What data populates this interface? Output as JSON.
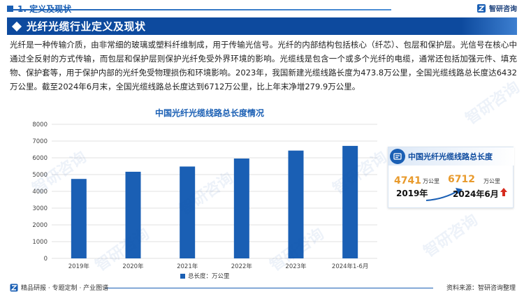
{
  "header": {
    "section_label": "1. 定义及现状",
    "brand": "智研咨询"
  },
  "banner": {
    "title": "光纤光缆行业定义及现状"
  },
  "intro_text": "光纤是一种传输介质，由非常细的玻璃或塑料纤维制成，用于传输光信号。光纤的内部结构包括核心（纤芯）、包层和保护层。光信号在核心中通过全反射的方式传输，而包层和保护层则保护光纤免受外界环境的影响。光缆线是包含一个或多个光纤的电缆，通常还包括加强元件、填充物、保护套等，用于保护内部的光纤免受物理损伤和环境影响。2023年，我国新建光缆线路长度为473.8万公里，全国光缆线路总长度达6432万公里。截至2024年6月末，全国光缆线路总长度达到6712万公里，比上年末净增279.9万公里。",
  "chart_data": {
    "type": "bar",
    "title": "中国光纤光缆线路总长度情况",
    "categories": [
      "2019年",
      "2020年",
      "2021年",
      "2022年",
      "2023年",
      "2024年1-6月"
    ],
    "series": [
      {
        "name": "总长度：万公里",
        "values": [
          4741,
          5169,
          5481,
          5958,
          6432,
          6712
        ]
      }
    ],
    "ylim": [
      0,
      8000
    ],
    "yticks": [
      "0",
      "1000",
      "2000",
      "3000",
      "4000",
      "5000",
      "6000",
      "7000",
      "8000"
    ],
    "grid": true,
    "legend": "bottom",
    "bar_color": "#1a5fb4"
  },
  "card": {
    "title": "中国光纤光缆线路总长度",
    "value_start": "4741",
    "unit_start": "万公里",
    "year_start": "2019年",
    "value_end": "6712",
    "unit_end": "万公里",
    "year_end": "2024年6月"
  },
  "footer": {
    "left_text": "精品研报 · 专题定制 · 产业图谱",
    "source": "资料来源：智研咨询整理"
  },
  "watermark_text": "智研咨询",
  "colors": {
    "primary": "#1a5fb4",
    "banner": "#0d4a9e",
    "highlight": "#e89a2c",
    "up_arrow": "#d62c1f"
  }
}
